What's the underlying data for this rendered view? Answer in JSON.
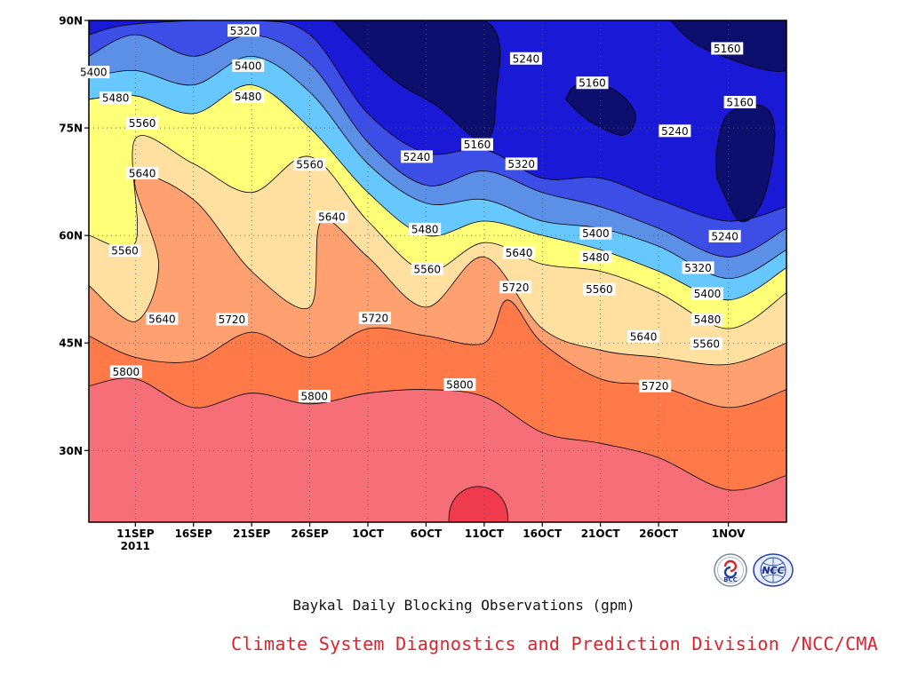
{
  "chart_data": {
    "type": "heatmap",
    "subtype": "filled-contour (time-latitude Hovmoller)",
    "title": "Baykal Daily Blocking Observations (gpm)",
    "xlabel": "",
    "ylabel": "",
    "x_range": [
      "2011-09-07",
      "2011-11-06"
    ],
    "ylim": [
      20,
      90
    ],
    "x_ticks": [
      {
        "date": "2011-09-11",
        "label": "11SEP",
        "sublabel": "2011"
      },
      {
        "date": "2011-09-16",
        "label": "16SEP"
      },
      {
        "date": "2011-09-21",
        "label": "21SEP"
      },
      {
        "date": "2011-09-26",
        "label": "26SEP"
      },
      {
        "date": "2011-10-01",
        "label": "1OCT"
      },
      {
        "date": "2011-10-06",
        "label": "6OCT"
      },
      {
        "date": "2011-10-11",
        "label": "11OCT"
      },
      {
        "date": "2011-10-16",
        "label": "16OCT"
      },
      {
        "date": "2011-10-21",
        "label": "21OCT"
      },
      {
        "date": "2011-10-26",
        "label": "26OCT"
      },
      {
        "date": "2011-11-01",
        "label": "1NOV"
      }
    ],
    "y_ticks": [
      {
        "value": 30,
        "label": "30N"
      },
      {
        "value": 45,
        "label": "45N"
      },
      {
        "value": 60,
        "label": "60N"
      },
      {
        "value": 75,
        "label": "75N"
      },
      {
        "value": 90,
        "label": "90N"
      }
    ],
    "grid": true,
    "contour_levels": [
      5160,
      5240,
      5320,
      5400,
      5480,
      5560,
      5640,
      5720,
      5800,
      5880
    ],
    "fill_colors": {
      "below_5160": "#0d0f6e",
      "5160_5240": "#1a1ad6",
      "5240_5320": "#3c4ee6",
      "5320_5400": "#5b90e6",
      "5400_5480": "#66c8ff",
      "5480_5560": "#ffff78",
      "5560_5640": "#ffe0a0",
      "5640_5720": "#ffa070",
      "5720_5800": "#ff7a48",
      "5800_5880": "#f56e78",
      "above_5880": "#f03a4e"
    },
    "contour_lines": [
      {
        "level": 5800,
        "points": [
          [
            "2011-09-07",
            39
          ],
          [
            "2011-09-11",
            40
          ],
          [
            "2011-09-16",
            36
          ],
          [
            "2011-09-21",
            38
          ],
          [
            "2011-09-26",
            36.5
          ],
          [
            "2011-10-01",
            38
          ],
          [
            "2011-10-06",
            38.5
          ],
          [
            "2011-10-11",
            37.5
          ],
          [
            "2011-10-16",
            32.5
          ],
          [
            "2011-10-21",
            31
          ],
          [
            "2011-10-26",
            29
          ],
          [
            "2011-11-01",
            24.5
          ],
          [
            "2011-11-06",
            26.5
          ]
        ]
      },
      {
        "level": 5720,
        "points": [
          [
            "2011-09-07",
            46
          ],
          [
            "2011-09-11",
            43
          ],
          [
            "2011-09-16",
            42.5
          ],
          [
            "2011-09-21",
            46.5
          ],
          [
            "2011-09-26",
            43
          ],
          [
            "2011-10-01",
            47
          ],
          [
            "2011-10-06",
            46
          ],
          [
            "2011-10-11",
            45
          ],
          [
            "2011-10-13",
            51
          ],
          [
            "2011-10-16",
            45
          ],
          [
            "2011-10-21",
            40
          ],
          [
            "2011-10-26",
            39
          ],
          [
            "2011-11-01",
            36
          ],
          [
            "2011-11-06",
            38.5
          ]
        ]
      },
      {
        "level": 5640,
        "points": [
          [
            "2011-09-07",
            53
          ],
          [
            "2011-09-11",
            48
          ],
          [
            "2011-09-13",
            56
          ],
          [
            "2011-09-11",
            68
          ],
          [
            "2011-09-16",
            65
          ],
          [
            "2011-09-21",
            55
          ],
          [
            "2011-09-26",
            50
          ],
          [
            "2011-09-27",
            62
          ],
          [
            "2011-10-01",
            57
          ],
          [
            "2011-10-06",
            50
          ],
          [
            "2011-10-11",
            57
          ],
          [
            "2011-10-16",
            47
          ],
          [
            "2011-10-21",
            44
          ],
          [
            "2011-10-26",
            43
          ],
          [
            "2011-11-01",
            42
          ],
          [
            "2011-11-06",
            45
          ]
        ]
      },
      {
        "level": 5560,
        "points": [
          [
            "2011-09-07",
            60
          ],
          [
            "2011-09-11",
            59
          ],
          [
            "2011-09-11",
            73.5
          ],
          [
            "2011-09-16",
            70
          ],
          [
            "2011-09-21",
            66
          ],
          [
            "2011-09-26",
            71
          ],
          [
            "2011-10-01",
            62
          ],
          [
            "2011-10-06",
            55
          ],
          [
            "2011-10-11",
            59
          ],
          [
            "2011-10-16",
            56
          ],
          [
            "2011-10-21",
            55
          ],
          [
            "2011-10-26",
            52
          ],
          [
            "2011-11-01",
            47
          ],
          [
            "2011-11-06",
            52
          ]
        ]
      },
      {
        "level": 5480,
        "points": [
          [
            "2011-09-07",
            79
          ],
          [
            "2011-09-11",
            79.5
          ],
          [
            "2011-09-16",
            77
          ],
          [
            "2011-09-21",
            81
          ],
          [
            "2011-09-26",
            75
          ],
          [
            "2011-10-01",
            66
          ],
          [
            "2011-10-06",
            60
          ],
          [
            "2011-10-11",
            62
          ],
          [
            "2011-10-16",
            60
          ],
          [
            "2011-10-21",
            58
          ],
          [
            "2011-10-26",
            55
          ],
          [
            "2011-11-01",
            51
          ],
          [
            "2011-11-06",
            55.5
          ]
        ]
      },
      {
        "level": 5400,
        "points": [
          [
            "2011-09-07",
            82
          ],
          [
            "2011-09-11",
            83
          ],
          [
            "2011-09-16",
            81
          ],
          [
            "2011-09-21",
            85
          ],
          [
            "2011-09-26",
            80
          ],
          [
            "2011-10-01",
            70
          ],
          [
            "2011-10-06",
            64.5
          ],
          [
            "2011-10-11",
            65
          ],
          [
            "2011-10-16",
            62
          ],
          [
            "2011-10-21",
            61
          ],
          [
            "2011-10-26",
            58.5
          ],
          [
            "2011-11-01",
            54
          ],
          [
            "2011-11-06",
            58
          ]
        ]
      },
      {
        "level": 5320,
        "points": [
          [
            "2011-09-07",
            85
          ],
          [
            "2011-09-11",
            88
          ],
          [
            "2011-09-16",
            85
          ],
          [
            "2011-09-21",
            88
          ],
          [
            "2011-09-26",
            84
          ],
          [
            "2011-10-01",
            73
          ],
          [
            "2011-10-06",
            67
          ],
          [
            "2011-10-11",
            69
          ],
          [
            "2011-10-16",
            66
          ],
          [
            "2011-10-21",
            64
          ],
          [
            "2011-10-26",
            61
          ],
          [
            "2011-11-01",
            57
          ],
          [
            "2011-11-06",
            61
          ]
        ]
      },
      {
        "level": 5240,
        "points": [
          [
            "2011-09-07",
            88
          ],
          [
            "2011-09-11",
            89.5
          ],
          [
            "2011-09-21",
            90
          ],
          [
            "2011-09-26",
            88
          ],
          [
            "2011-10-01",
            77
          ],
          [
            "2011-10-06",
            71.5
          ],
          [
            "2011-10-11",
            72
          ],
          [
            "2011-10-16",
            68
          ],
          [
            "2011-10-21",
            68
          ],
          [
            "2011-10-26",
            65
          ],
          [
            "2011-11-01",
            62
          ],
          [
            "2011-11-06",
            64
          ]
        ]
      }
    ],
    "contour_labels": [
      {
        "text": "5320",
        "date": "2011-09-20.3",
        "lat": 88.6
      },
      {
        "text": "5400",
        "date": "2011-09-07.4",
        "lat": 82.8
      },
      {
        "text": "5400",
        "date": "2011-09-20.7",
        "lat": 83.7
      },
      {
        "text": "5480",
        "date": "2011-09-09.3",
        "lat": 79.2
      },
      {
        "text": "5480",
        "date": "2011-09-20.7",
        "lat": 79.4
      },
      {
        "text": "5560",
        "date": "2011-09-11.6",
        "lat": 75.7
      },
      {
        "text": "5560",
        "date": "2011-09-26.0",
        "lat": 69.9
      },
      {
        "text": "5640",
        "date": "2011-09-11.6",
        "lat": 68.7
      },
      {
        "text": "5640",
        "date": "2011-09-27.9",
        "lat": 62.6
      },
      {
        "text": "5560",
        "date": "2011-09-10.1",
        "lat": 57.9
      },
      {
        "text": "5640",
        "date": "2011-09-13.3",
        "lat": 48.4
      },
      {
        "text": "5720",
        "date": "2011-09-19.3",
        "lat": 48.3
      },
      {
        "text": "5800",
        "date": "2011-09-10.2",
        "lat": 41.0
      },
      {
        "text": "5800",
        "date": "2011-09-26.4",
        "lat": 37.6
      },
      {
        "text": "5240",
        "date": "2011-10-05.2",
        "lat": 71.0
      },
      {
        "text": "5160",
        "date": "2011-10-10.4",
        "lat": 72.7
      },
      {
        "text": "5320",
        "date": "2011-10-14.2",
        "lat": 70.0
      },
      {
        "text": "5480",
        "date": "2011-10-05.9",
        "lat": 60.9
      },
      {
        "text": "5560",
        "date": "2011-10-06.1",
        "lat": 55.3
      },
      {
        "text": "5640",
        "date": "2011-10-14.0",
        "lat": 57.6
      },
      {
        "text": "5720",
        "date": "2011-10-13.7",
        "lat": 52.8
      },
      {
        "text": "5720",
        "date": "2011-10-01.6",
        "lat": 48.5
      },
      {
        "text": "5800",
        "date": "2011-10-08.9",
        "lat": 39.2
      },
      {
        "text": "5240",
        "date": "2011-10-14.6",
        "lat": 84.7
      },
      {
        "text": "5160",
        "date": "2011-10-20.3",
        "lat": 81.3
      },
      {
        "text": "5400",
        "date": "2011-10-20.6",
        "lat": 60.3
      },
      {
        "text": "5480",
        "date": "2011-10-20.6",
        "lat": 57.0
      },
      {
        "text": "5560",
        "date": "2011-10-20.9",
        "lat": 52.5
      },
      {
        "text": "5640",
        "date": "2011-10-24.7",
        "lat": 45.9
      },
      {
        "text": "5720",
        "date": "2011-10-25.7",
        "lat": 39.0
      },
      {
        "text": "5240",
        "date": "2011-10-27.4",
        "lat": 74.6
      },
      {
        "text": "5160",
        "date": "2011-10-31.9",
        "lat": 86.1
      },
      {
        "text": "5160",
        "date": "2011-11-02.0",
        "lat": 78.6
      },
      {
        "text": "5240",
        "date": "2011-10-31.7",
        "lat": 59.9
      },
      {
        "text": "5320",
        "date": "2011-10-29.4",
        "lat": 55.5
      },
      {
        "text": "5400",
        "date": "2011-10-30.2",
        "lat": 51.9
      },
      {
        "text": "5480",
        "date": "2011-10-30.2",
        "lat": 48.3
      },
      {
        "text": "5560",
        "date": "2011-10-30.1",
        "lat": 44.9
      }
    ],
    "features": [
      {
        "kind": "low-center",
        "below": 5160,
        "date": "2011-10-05",
        "lat": 84
      },
      {
        "kind": "low-center",
        "below": 5160,
        "date": "2011-10-21",
        "lat": 78
      },
      {
        "kind": "low-center",
        "below": 5160,
        "date": "2011-11-02",
        "lat": 72
      },
      {
        "kind": "high-center",
        "above": 5880,
        "date": "2011-10-10.5",
        "lat": 23
      }
    ]
  },
  "caption": "Baykal Daily Blocking Observations (gpm)",
  "credit": "Climate System Diagnostics and Prediction Division /NCC/CMA",
  "logos": [
    {
      "name": "BCC",
      "text": "BCC"
    },
    {
      "name": "NCC",
      "text": "NCC"
    }
  ]
}
